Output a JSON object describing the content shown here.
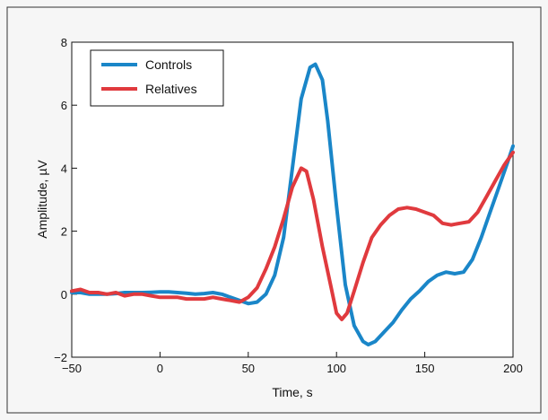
{
  "chart_data": {
    "type": "line",
    "title": "",
    "xlabel": "Time, s",
    "ylabel": "Amplitude, µV",
    "xlim": [
      -50,
      200
    ],
    "ylim": [
      -2,
      8
    ],
    "xticks": [
      "−50",
      "0",
      "50",
      "100",
      "150",
      "200"
    ],
    "xtick_values": [
      -50,
      0,
      50,
      100,
      150,
      200
    ],
    "yticks": [
      "−2",
      "0",
      "2",
      "4",
      "6",
      "8"
    ],
    "ytick_values": [
      -2,
      0,
      2,
      4,
      6,
      8
    ],
    "grid": false,
    "legend_position": "top-left",
    "series": [
      {
        "name": "Controls",
        "color": "#1a86c8",
        "x": [
          -50,
          -45,
          -40,
          -35,
          -30,
          -25,
          -20,
          -15,
          -10,
          -5,
          0,
          5,
          10,
          15,
          20,
          25,
          30,
          35,
          40,
          45,
          50,
          55,
          60,
          65,
          70,
          75,
          80,
          85,
          88,
          92,
          95,
          100,
          105,
          110,
          115,
          118,
          122,
          127,
          132,
          137,
          142,
          147,
          152,
          157,
          162,
          167,
          172,
          177,
          182,
          187,
          192,
          197,
          200
        ],
        "y": [
          0.05,
          0.05,
          0.0,
          0.0,
          0.0,
          0.02,
          0.05,
          0.05,
          0.05,
          0.06,
          0.07,
          0.07,
          0.05,
          0.03,
          0.0,
          0.02,
          0.05,
          0.0,
          -0.1,
          -0.2,
          -0.3,
          -0.25,
          0.0,
          0.6,
          1.8,
          4.0,
          6.2,
          7.2,
          7.3,
          6.8,
          5.5,
          2.8,
          0.3,
          -1.0,
          -1.5,
          -1.6,
          -1.5,
          -1.2,
          -0.9,
          -0.5,
          -0.15,
          0.1,
          0.4,
          0.6,
          0.7,
          0.65,
          0.7,
          1.1,
          1.8,
          2.6,
          3.4,
          4.2,
          4.7
        ]
      },
      {
        "name": "Relatives",
        "color": "#e03a3e",
        "x": [
          -50,
          -45,
          -40,
          -35,
          -30,
          -25,
          -20,
          -15,
          -10,
          -5,
          0,
          5,
          10,
          15,
          20,
          25,
          30,
          35,
          40,
          45,
          50,
          55,
          60,
          65,
          70,
          75,
          80,
          83,
          87,
          92,
          97,
          100,
          103,
          106,
          110,
          115,
          120,
          125,
          130,
          135,
          140,
          145,
          150,
          155,
          160,
          165,
          170,
          175,
          180,
          185,
          190,
          195,
          200
        ],
        "y": [
          0.1,
          0.15,
          0.05,
          0.05,
          0.0,
          0.05,
          -0.05,
          0.0,
          0.0,
          -0.05,
          -0.1,
          -0.1,
          -0.1,
          -0.15,
          -0.15,
          -0.15,
          -0.1,
          -0.15,
          -0.2,
          -0.25,
          -0.1,
          0.2,
          0.8,
          1.5,
          2.4,
          3.4,
          4.0,
          3.9,
          3.0,
          1.5,
          0.2,
          -0.6,
          -0.8,
          -0.6,
          0.1,
          1.0,
          1.8,
          2.2,
          2.5,
          2.7,
          2.75,
          2.7,
          2.6,
          2.5,
          2.25,
          2.2,
          2.25,
          2.3,
          2.6,
          3.1,
          3.6,
          4.1,
          4.5
        ]
      }
    ]
  }
}
